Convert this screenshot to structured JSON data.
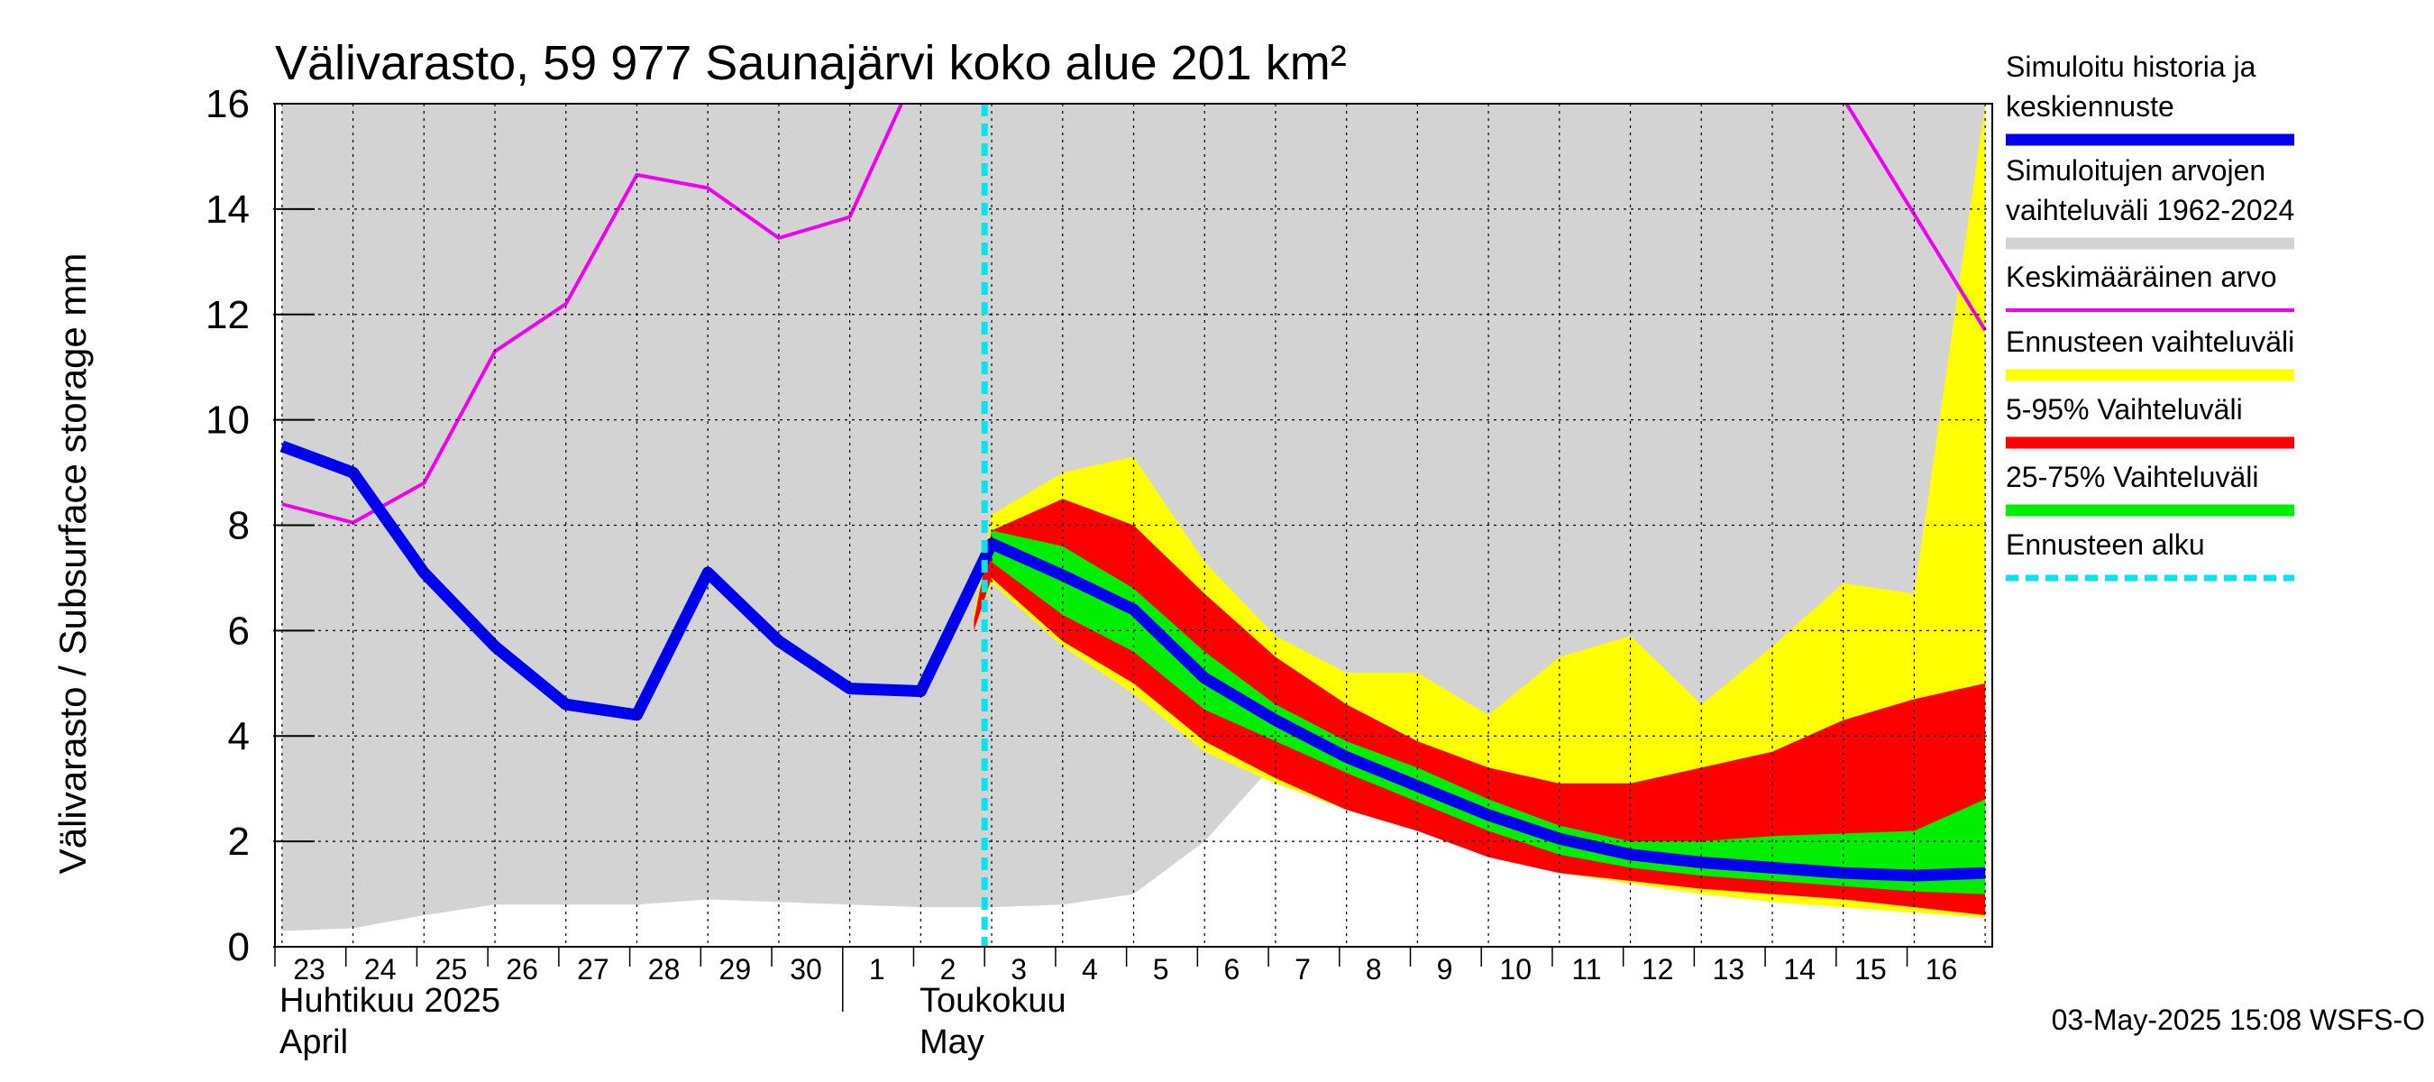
{
  "chart_data": {
    "type": "area",
    "title": "Välivarasto, 59 977 Saunajärvi koko alue 201 km²",
    "ylabel": "Välivarasto / Subsurface storage  mm",
    "ylim": [
      0,
      16
    ],
    "yticks": [
      "0",
      "2",
      "4",
      "6",
      "8",
      "10",
      "12",
      "14",
      "16"
    ],
    "grid": true,
    "x_day_labels": [
      "23",
      "24",
      "25",
      "26",
      "27",
      "28",
      "29",
      "30",
      "1",
      "2",
      "3",
      "4",
      "5",
      "6",
      "7",
      "8",
      "9",
      "10",
      "11",
      "12",
      "13",
      "14",
      "15",
      "16"
    ],
    "month_labels": [
      {
        "fi": "Huhtikuu  2025",
        "en": "April"
      },
      {
        "fi": "Toukokuu",
        "en": "May"
      }
    ],
    "forecast_start": "3",
    "timestamp": "03-May-2025 15:08 WSFS-O",
    "legend_position": "right",
    "legend": [
      {
        "label": "Simuloitu historia ja keskiennuste",
        "color": "#0000ee",
        "style": "thick-line"
      },
      {
        "label": "Simuloitujen arvojen vaihteluväli 1962-2024",
        "color": "#d3d3d3",
        "style": "band"
      },
      {
        "label": "Keskimääräinen arvo",
        "color": "#ee00ee",
        "style": "line"
      },
      {
        "label": "Ennusteen vaihteluväli",
        "color": "#ffff00",
        "style": "band"
      },
      {
        "label": "5-95% Vaihteluväli",
        "color": "#ff0000",
        "style": "band"
      },
      {
        "label": "25-75% Vaihteluväli",
        "color": "#00ee00",
        "style": "band"
      },
      {
        "label": "Ennusteen alku",
        "color": "#00e5ee",
        "style": "dashed-line"
      }
    ],
    "x_range_days": [
      -0.1,
      24.1
    ],
    "historical_range": {
      "x": [
        0,
        1,
        2,
        3,
        4,
        5,
        6,
        7,
        8,
        9,
        10,
        11,
        12,
        13,
        14,
        15,
        16,
        17,
        18,
        19,
        20,
        21,
        22,
        23,
        24
      ],
      "low": [
        0.3,
        0.35,
        0.6,
        0.8,
        0.8,
        0.8,
        0.9,
        0.85,
        0.8,
        0.75,
        0.75,
        0.8,
        1.0,
        2.0,
        3.5,
        3.7,
        3.7,
        3.5,
        2.5,
        1.9,
        1.6,
        1.4,
        1.2,
        1.1,
        1.0
      ],
      "high": [
        16,
        16,
        16,
        16,
        16,
        16,
        16,
        16,
        16,
        16,
        16,
        16,
        16,
        16,
        16,
        16,
        16,
        16,
        16,
        16,
        16,
        16,
        16,
        16,
        16
      ]
    },
    "mean_value": {
      "x": [
        0,
        1,
        2,
        3,
        4,
        5,
        6,
        7,
        8,
        9,
        21,
        22,
        23,
        24
      ],
      "y": [
        8.4,
        8.05,
        8.8,
        11.3,
        12.2,
        14.65,
        14.4,
        13.45,
        13.85,
        16.8,
        17.5,
        16.1,
        13.9,
        11.7
      ]
    },
    "forecast_range": {
      "x": [
        9.75,
        10,
        11,
        12,
        13,
        14,
        15,
        16,
        17,
        18,
        19,
        20,
        21,
        22,
        23,
        24
      ],
      "low": [
        6.0,
        6.9,
        5.7,
        4.8,
        3.7,
        3.1,
        2.6,
        2.2,
        1.8,
        1.4,
        1.2,
        1.0,
        0.85,
        0.75,
        0.65,
        0.55
      ],
      "high": [
        6.3,
        8.2,
        9.0,
        9.3,
        7.3,
        5.9,
        5.2,
        5.2,
        4.4,
        5.5,
        5.9,
        4.6,
        5.7,
        6.9,
        6.7,
        16.0
      ]
    },
    "p5_95": {
      "x": [
        9.75,
        10,
        11,
        12,
        13,
        14,
        15,
        16,
        17,
        18,
        19,
        20,
        21,
        22,
        23,
        24
      ],
      "low": [
        6.0,
        7.0,
        5.8,
        5.0,
        3.9,
        3.2,
        2.6,
        2.2,
        1.7,
        1.4,
        1.25,
        1.1,
        1.0,
        0.9,
        0.75,
        0.6
      ],
      "high": [
        6.2,
        7.9,
        8.5,
        8.0,
        6.7,
        5.5,
        4.6,
        3.9,
        3.4,
        3.1,
        3.1,
        3.4,
        3.7,
        4.3,
        4.7,
        5.0
      ]
    },
    "p25_75": {
      "x": [
        10,
        11,
        12,
        13,
        14,
        15,
        16,
        17,
        18,
        19,
        20,
        21,
        22,
        23,
        24
      ],
      "low": [
        7.3,
        6.3,
        5.6,
        4.5,
        3.9,
        3.3,
        2.75,
        2.2,
        1.75,
        1.5,
        1.35,
        1.25,
        1.15,
        1.05,
        1.0
      ],
      "high": [
        7.9,
        7.6,
        6.8,
        5.6,
        4.6,
        3.9,
        3.4,
        2.8,
        2.3,
        2.0,
        2.0,
        2.1,
        2.15,
        2.2,
        2.8
      ]
    },
    "simulated_history_and_median": {
      "x": [
        0,
        1,
        2,
        3,
        4,
        5,
        6,
        7,
        8,
        9,
        10,
        11,
        12,
        13,
        14,
        15,
        16,
        17,
        18,
        19,
        20,
        21,
        22,
        23,
        24
      ],
      "y": [
        9.5,
        9.0,
        7.1,
        5.7,
        4.6,
        4.4,
        7.1,
        5.8,
        4.9,
        4.85,
        7.65,
        7.05,
        6.4,
        5.1,
        4.3,
        3.6,
        3.05,
        2.5,
        2.05,
        1.75,
        1.6,
        1.5,
        1.4,
        1.35,
        1.4
      ]
    }
  }
}
